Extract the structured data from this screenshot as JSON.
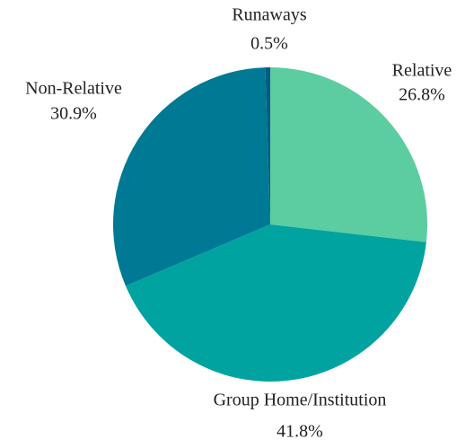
{
  "chart_data": {
    "type": "pie",
    "categories": [
      "Relative",
      "Group Home/Institution",
      "Non-Relative",
      "Runaways"
    ],
    "values": [
      26.8,
      41.8,
      30.9,
      0.5
    ],
    "value_labels": [
      "26.8%",
      "41.8%",
      "30.9%",
      "0.5%"
    ],
    "colors": [
      "#5ccda0",
      "#00a3a0",
      "#007a94",
      "#005a87"
    ]
  }
}
